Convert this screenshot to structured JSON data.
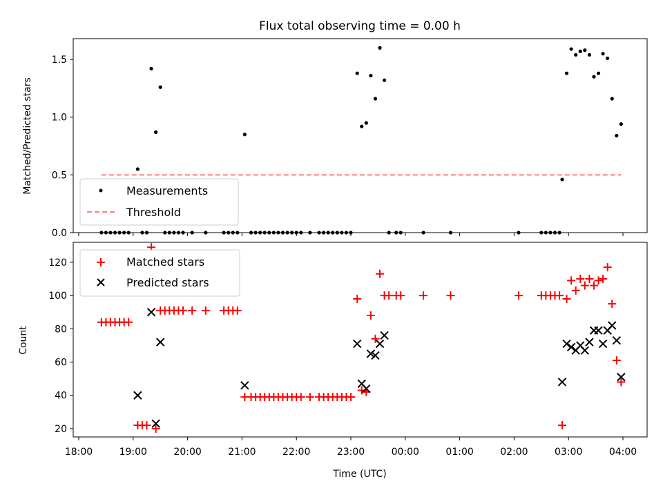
{
  "chart_data": [
    {
      "type": "scatter",
      "title": "Flux total observing time = 0.00 h",
      "xlabel": "",
      "ylabel": "Matched/Predicted stars",
      "xlim": [
        "18:00",
        "04:00"
      ],
      "ylim": [
        0,
        1.68
      ],
      "x_ticks": [
        "18:00",
        "19:00",
        "20:00",
        "21:00",
        "22:00",
        "23:00",
        "00:00",
        "01:00",
        "02:00",
        "03:00",
        "04:00"
      ],
      "y_ticks": [
        "0.0",
        "0.5",
        "1.0",
        "1.5"
      ],
      "legend": {
        "placement": "lower-left",
        "entries": [
          "Measurements",
          "Threshold"
        ]
      },
      "series": [
        {
          "name": "Measurements",
          "marker": "dot",
          "color": "#000000",
          "points": [
            [
              "18:25",
              0
            ],
            [
              "18:30",
              0
            ],
            [
              "18:35",
              0
            ],
            [
              "18:40",
              0
            ],
            [
              "18:45",
              0
            ],
            [
              "18:50",
              0
            ],
            [
              "18:55",
              0
            ],
            [
              "19:05",
              0.55
            ],
            [
              "19:10",
              0
            ],
            [
              "19:15",
              0
            ],
            [
              "19:20",
              1.42
            ],
            [
              "19:25",
              0.87
            ],
            [
              "19:30",
              1.26
            ],
            [
              "19:35",
              0
            ],
            [
              "19:40",
              0
            ],
            [
              "19:45",
              0
            ],
            [
              "19:50",
              0
            ],
            [
              "19:55",
              0
            ],
            [
              "20:05",
              0
            ],
            [
              "20:20",
              0
            ],
            [
              "20:40",
              0
            ],
            [
              "20:45",
              0
            ],
            [
              "20:50",
              0
            ],
            [
              "20:55",
              0
            ],
            [
              "21:03",
              0.85
            ],
            [
              "21:10",
              0
            ],
            [
              "21:15",
              0
            ],
            [
              "21:20",
              0
            ],
            [
              "21:25",
              0
            ],
            [
              "21:30",
              0
            ],
            [
              "21:35",
              0
            ],
            [
              "21:40",
              0
            ],
            [
              "21:45",
              0
            ],
            [
              "21:50",
              0
            ],
            [
              "21:55",
              0
            ],
            [
              "22:00",
              0
            ],
            [
              "22:05",
              0
            ],
            [
              "22:15",
              0
            ],
            [
              "22:25",
              0
            ],
            [
              "22:30",
              0
            ],
            [
              "22:35",
              0
            ],
            [
              "22:40",
              0
            ],
            [
              "22:45",
              0
            ],
            [
              "22:50",
              0
            ],
            [
              "22:55",
              0
            ],
            [
              "23:00",
              0
            ],
            [
              "23:07",
              1.38
            ],
            [
              "23:12",
              0.92
            ],
            [
              "23:17",
              0.95
            ],
            [
              "23:22",
              1.36
            ],
            [
              "23:27",
              1.16
            ],
            [
              "23:32",
              1.6
            ],
            [
              "23:37",
              1.32
            ],
            [
              "23:42",
              0
            ],
            [
              "23:50",
              0
            ],
            [
              "23:55",
              0
            ],
            [
              "00:20",
              0
            ],
            [
              "00:50",
              0
            ],
            [
              "02:05",
              0
            ],
            [
              "02:30",
              0
            ],
            [
              "02:35",
              0
            ],
            [
              "02:40",
              0
            ],
            [
              "02:45",
              0
            ],
            [
              "02:50",
              0
            ],
            [
              "02:53",
              0.46
            ],
            [
              "02:58",
              1.38
            ],
            [
              "03:03",
              1.59
            ],
            [
              "03:08",
              1.54
            ],
            [
              "03:13",
              1.57
            ],
            [
              "03:18",
              1.58
            ],
            [
              "03:23",
              1.54
            ],
            [
              "03:28",
              1.35
            ],
            [
              "03:33",
              1.38
            ],
            [
              "03:38",
              1.55
            ],
            [
              "03:43",
              1.51
            ],
            [
              "03:48",
              1.16
            ],
            [
              "03:53",
              0.84
            ],
            [
              "03:58",
              0.94
            ]
          ]
        },
        {
          "name": "Threshold",
          "style": "dashed",
          "color": "#ff7b7b",
          "points": [
            [
              "18:25",
              0.5
            ],
            [
              "03:58",
              0.5
            ]
          ]
        }
      ]
    },
    {
      "type": "scatter",
      "title": "",
      "xlabel": "Time (UTC)",
      "ylabel": "Count",
      "xlim": [
        "18:00",
        "04:00"
      ],
      "ylim": [
        15,
        132
      ],
      "x_ticks": [
        "18:00",
        "19:00",
        "20:00",
        "21:00",
        "22:00",
        "23:00",
        "00:00",
        "01:00",
        "02:00",
        "03:00",
        "04:00"
      ],
      "y_ticks": [
        "20",
        "40",
        "60",
        "80",
        "100",
        "120"
      ],
      "legend": {
        "placement": "upper-left",
        "entries": [
          "Matched stars",
          "Predicted stars"
        ]
      },
      "series": [
        {
          "name": "Matched stars",
          "marker": "plus",
          "color": "#ff0000",
          "points": [
            [
              "18:25",
              84
            ],
            [
              "18:30",
              84
            ],
            [
              "18:35",
              84
            ],
            [
              "18:40",
              84
            ],
            [
              "18:45",
              84
            ],
            [
              "18:50",
              84
            ],
            [
              "18:55",
              84
            ],
            [
              "19:05",
              22
            ],
            [
              "19:10",
              22
            ],
            [
              "19:15",
              22
            ],
            [
              "19:20",
              129
            ],
            [
              "19:25",
              20
            ],
            [
              "19:30",
              91
            ],
            [
              "19:35",
              91
            ],
            [
              "19:40",
              91
            ],
            [
              "19:45",
              91
            ],
            [
              "19:50",
              91
            ],
            [
              "19:55",
              91
            ],
            [
              "20:05",
              91
            ],
            [
              "20:20",
              91
            ],
            [
              "20:40",
              91
            ],
            [
              "20:45",
              91
            ],
            [
              "20:50",
              91
            ],
            [
              "20:55",
              91
            ],
            [
              "21:03",
              39
            ],
            [
              "21:10",
              39
            ],
            [
              "21:15",
              39
            ],
            [
              "21:20",
              39
            ],
            [
              "21:25",
              39
            ],
            [
              "21:30",
              39
            ],
            [
              "21:35",
              39
            ],
            [
              "21:40",
              39
            ],
            [
              "21:45",
              39
            ],
            [
              "21:50",
              39
            ],
            [
              "21:55",
              39
            ],
            [
              "22:00",
              39
            ],
            [
              "22:05",
              39
            ],
            [
              "22:15",
              39
            ],
            [
              "22:25",
              39
            ],
            [
              "22:30",
              39
            ],
            [
              "22:35",
              39
            ],
            [
              "22:40",
              39
            ],
            [
              "22:45",
              39
            ],
            [
              "22:50",
              39
            ],
            [
              "22:55",
              39
            ],
            [
              "23:00",
              39
            ],
            [
              "23:07",
              98
            ],
            [
              "23:12",
              43
            ],
            [
              "23:17",
              42
            ],
            [
              "23:22",
              88
            ],
            [
              "23:27",
              74
            ],
            [
              "23:32",
              113
            ],
            [
              "23:37",
              100
            ],
            [
              "23:42",
              100
            ],
            [
              "23:50",
              100
            ],
            [
              "23:55",
              100
            ],
            [
              "00:20",
              100
            ],
            [
              "00:50",
              100
            ],
            [
              "02:05",
              100
            ],
            [
              "02:30",
              100
            ],
            [
              "02:35",
              100
            ],
            [
              "02:40",
              100
            ],
            [
              "02:45",
              100
            ],
            [
              "02:50",
              100
            ],
            [
              "02:53",
              22
            ],
            [
              "02:58",
              98
            ],
            [
              "03:03",
              109
            ],
            [
              "03:08",
              103
            ],
            [
              "03:13",
              110
            ],
            [
              "03:18",
              106
            ],
            [
              "03:23",
              110
            ],
            [
              "03:28",
              106
            ],
            [
              "03:33",
              109
            ],
            [
              "03:38",
              110
            ],
            [
              "03:43",
              117
            ],
            [
              "03:48",
              95
            ],
            [
              "03:53",
              61
            ],
            [
              "03:58",
              48
            ]
          ]
        },
        {
          "name": "Predicted stars",
          "marker": "x",
          "color": "#000000",
          "points": [
            [
              "19:05",
              40
            ],
            [
              "19:20",
              90
            ],
            [
              "19:25",
              23
            ],
            [
              "19:30",
              72
            ],
            [
              "21:03",
              46
            ],
            [
              "23:07",
              71
            ],
            [
              "23:12",
              47
            ],
            [
              "23:17",
              44
            ],
            [
              "23:22",
              65
            ],
            [
              "23:27",
              64
            ],
            [
              "23:32",
              71
            ],
            [
              "23:37",
              76
            ],
            [
              "02:53",
              48
            ],
            [
              "02:58",
              71
            ],
            [
              "03:03",
              69
            ],
            [
              "03:08",
              67
            ],
            [
              "03:13",
              70
            ],
            [
              "03:18",
              67
            ],
            [
              "03:23",
              72
            ],
            [
              "03:28",
              79
            ],
            [
              "03:33",
              79
            ],
            [
              "03:38",
              71
            ],
            [
              "03:43",
              79
            ],
            [
              "03:48",
              82
            ],
            [
              "03:53",
              73
            ],
            [
              "03:58",
              51
            ]
          ]
        }
      ]
    }
  ]
}
